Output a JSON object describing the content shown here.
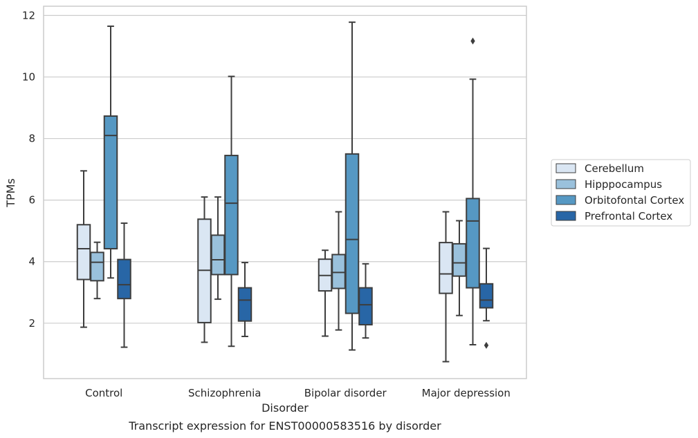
{
  "chart_data": {
    "type": "box",
    "xlabel": "Disorder",
    "ylabel": "TPMs",
    "caption": "Transcript expression for ENST00000583516 by disorder",
    "ylim": [
      0.2,
      12.3
    ],
    "yticks": [
      2,
      4,
      6,
      8,
      10,
      12
    ],
    "grid": "horizontal",
    "legend_placement": "right",
    "categories": [
      "Control",
      "Schizophrenia",
      "Bipolar disorder",
      "Major depression"
    ],
    "series": [
      {
        "name": "Cerebellum",
        "color": "#dae6f3",
        "boxes": [
          {
            "whisker_low": 1.87,
            "q1": 3.42,
            "median": 4.42,
            "q3": 5.2,
            "whisker_high": 6.95,
            "outliers": []
          },
          {
            "whisker_low": 1.38,
            "q1": 2.02,
            "median": 3.72,
            "q3": 5.38,
            "whisker_high": 6.1,
            "outliers": []
          },
          {
            "whisker_low": 1.58,
            "q1": 3.05,
            "median": 3.55,
            "q3": 4.08,
            "whisker_high": 4.37,
            "outliers": []
          },
          {
            "whisker_low": 0.75,
            "q1": 2.97,
            "median": 3.6,
            "q3": 4.62,
            "whisker_high": 5.62,
            "outliers": []
          }
        ]
      },
      {
        "name": "Hipppocampus",
        "color": "#9ac1dc",
        "boxes": [
          {
            "whisker_low": 2.8,
            "q1": 3.38,
            "median": 3.98,
            "q3": 4.3,
            "whisker_high": 4.63,
            "outliers": []
          },
          {
            "whisker_low": 2.78,
            "q1": 3.58,
            "median": 4.06,
            "q3": 4.86,
            "whisker_high": 6.1,
            "outliers": []
          },
          {
            "whisker_low": 1.78,
            "q1": 3.13,
            "median": 3.65,
            "q3": 4.23,
            "whisker_high": 5.62,
            "outliers": []
          },
          {
            "whisker_low": 2.25,
            "q1": 3.53,
            "median": 3.96,
            "q3": 4.58,
            "whisker_high": 5.33,
            "outliers": []
          }
        ]
      },
      {
        "name": "Orbitofontal Cortex",
        "color": "#5698c3",
        "boxes": [
          {
            "whisker_low": 3.47,
            "q1": 4.42,
            "median": 8.1,
            "q3": 8.73,
            "whisker_high": 11.65,
            "outliers": []
          },
          {
            "whisker_low": 1.25,
            "q1": 3.58,
            "median": 5.9,
            "q3": 7.45,
            "whisker_high": 10.02,
            "outliers": []
          },
          {
            "whisker_low": 1.13,
            "q1": 2.32,
            "median": 4.72,
            "q3": 7.5,
            "whisker_high": 11.78,
            "outliers": []
          },
          {
            "whisker_low": 1.3,
            "q1": 3.15,
            "median": 5.32,
            "q3": 6.05,
            "whisker_high": 9.93,
            "outliers": [
              11.17
            ]
          }
        ]
      },
      {
        "name": "Prefrontal Cortex",
        "color": "#2866a6",
        "boxes": [
          {
            "whisker_low": 1.22,
            "q1": 2.8,
            "median": 3.25,
            "q3": 4.07,
            "whisker_high": 5.25,
            "outliers": []
          },
          {
            "whisker_low": 1.57,
            "q1": 2.07,
            "median": 2.75,
            "q3": 3.15,
            "whisker_high": 3.97,
            "outliers": []
          },
          {
            "whisker_low": 1.52,
            "q1": 1.95,
            "median": 2.6,
            "q3": 3.15,
            "whisker_high": 3.93,
            "outliers": []
          },
          {
            "whisker_low": 2.08,
            "q1": 2.5,
            "median": 2.75,
            "q3": 3.28,
            "whisker_high": 4.43,
            "outliers": [
              1.28
            ]
          }
        ]
      }
    ]
  }
}
